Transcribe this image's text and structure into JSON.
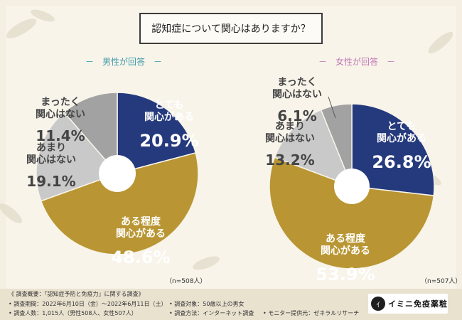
{
  "title": "認知症について関心はありますか？",
  "footer": {
    "overview": "《 調査概要：「認知症予防と免疫力」に関する調査》",
    "period": "• 調査期間：2022年6月10日（金）〜2022年6月11日（土）",
    "count": "• 調査人数：1,015人（男性508人、女性507人）",
    "target": "• 調査対象：50歳以上の男女",
    "method": "• 調査方法：インターネット調査",
    "provider": "• モニター提供元：ゼネラルリサーチ",
    "logo_text": "イミニ免疫薬粧",
    "logo_mark": "ｲ"
  },
  "colors": {
    "navy": "#25397d",
    "gold": "#b99633",
    "lightgray": "#c9c9c9",
    "gray": "#a2a2a2",
    "male_accent": "#3d9aa6",
    "female_accent": "#c276b4"
  },
  "chart_data": [
    {
      "type": "pie",
      "title": "男性が回答",
      "sample": "（n=508人）",
      "series": [
        {
          "name": "とても関心がある",
          "lines": [
            "とても",
            "関心がある"
          ],
          "value": 20.9,
          "label": "20.9%",
          "color": "#25397d"
        },
        {
          "name": "ある程度関心がある",
          "lines": [
            "ある程度",
            "関心がある"
          ],
          "value": 48.6,
          "label": "48.6%",
          "color": "#b99633"
        },
        {
          "name": "あまり関心はない",
          "lines": [
            "あまり",
            "関心はない"
          ],
          "value": 19.1,
          "label": "19.1%",
          "color": "#c9c9c9"
        },
        {
          "name": "まったく関心はない",
          "lines": [
            "まったく",
            "関心はない"
          ],
          "value": 11.4,
          "label": "11.4%",
          "color": "#a2a2a2"
        }
      ]
    },
    {
      "type": "pie",
      "title": "女性が回答",
      "sample": "（n=507人）",
      "series": [
        {
          "name": "とても関心がある",
          "lines": [
            "とても",
            "関心がある"
          ],
          "value": 26.8,
          "label": "26.8%",
          "color": "#25397d"
        },
        {
          "name": "ある程度関心がある",
          "lines": [
            "ある程度",
            "関心がある"
          ],
          "value": 53.9,
          "label": "53.9%",
          "color": "#b99633"
        },
        {
          "name": "あまり関心はない",
          "lines": [
            "あまり",
            "関心はない"
          ],
          "value": 13.2,
          "label": "13.2%",
          "color": "#c9c9c9"
        },
        {
          "name": "まったく関心はない",
          "lines": [
            "まったく",
            "関心はない"
          ],
          "value": 6.1,
          "label": "6.1%",
          "color": "#a2a2a2"
        }
      ]
    }
  ]
}
